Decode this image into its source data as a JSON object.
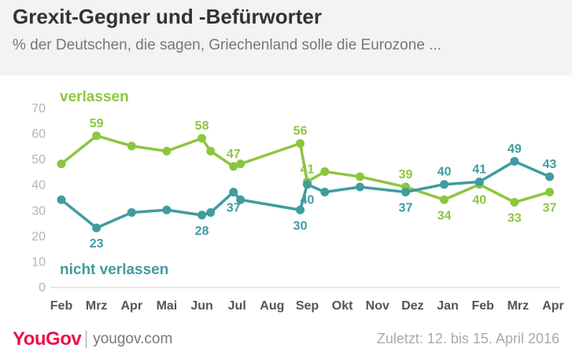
{
  "header": {
    "title": "Grexit-Gegner und -Befürworter",
    "subtitle": "% der Deutschen, die sagen, Griechenland solle die Eurozone ..."
  },
  "footer": {
    "brand": "YouGov",
    "site": "yougov.com",
    "note": "Zuletzt: 12. bis 15. April 2016"
  },
  "colors": {
    "verlassen": "#8cc63f",
    "nicht_verlassen": "#3f9c9f",
    "brand": "#e8114d"
  },
  "chart_data": {
    "type": "line",
    "ylim": [
      0,
      70
    ],
    "yticks": [
      0,
      10,
      20,
      30,
      40,
      50,
      60,
      70
    ],
    "month_labels": [
      "Feb",
      "Mrz",
      "Apr",
      "Mai",
      "Jun",
      "Jul",
      "Aug",
      "Sep",
      "Okt",
      "Nov",
      "Dez",
      "Jan",
      "Feb",
      "Mrz",
      "Apr"
    ],
    "grid": false,
    "series": [
      {
        "name": "verlassen",
        "x": [
          0,
          1,
          2,
          3,
          4,
          4.25,
          4.9,
          5.1,
          6.8,
          7,
          7.5,
          8.5,
          9.8,
          10.9,
          11.9,
          12.9,
          13.9
        ],
        "values": [
          48,
          59,
          55,
          53,
          58,
          53,
          47,
          48,
          56,
          41,
          45,
          43,
          39,
          34,
          40,
          33,
          37
        ],
        "labels": [
          "",
          "59",
          "",
          "",
          "58",
          "",
          "47",
          "",
          "56",
          "41",
          "",
          "",
          "39",
          "34",
          "40",
          "33",
          "37"
        ]
      },
      {
        "name": "nicht verlassen",
        "x": [
          0,
          1,
          2,
          3,
          4,
          4.25,
          4.9,
          5.1,
          6.8,
          7,
          7.5,
          8.5,
          9.8,
          10.9,
          11.9,
          12.9,
          13.9
        ],
        "values": [
          34,
          23,
          29,
          30,
          28,
          29,
          37,
          34,
          30,
          40,
          37,
          39,
          37,
          40,
          41,
          49,
          43
        ],
        "labels": [
          "",
          "23",
          "",
          "",
          "28",
          "",
          "37",
          "",
          "30",
          "40",
          "",
          "",
          "37",
          "40",
          "41",
          "49",
          "43"
        ]
      }
    ]
  }
}
